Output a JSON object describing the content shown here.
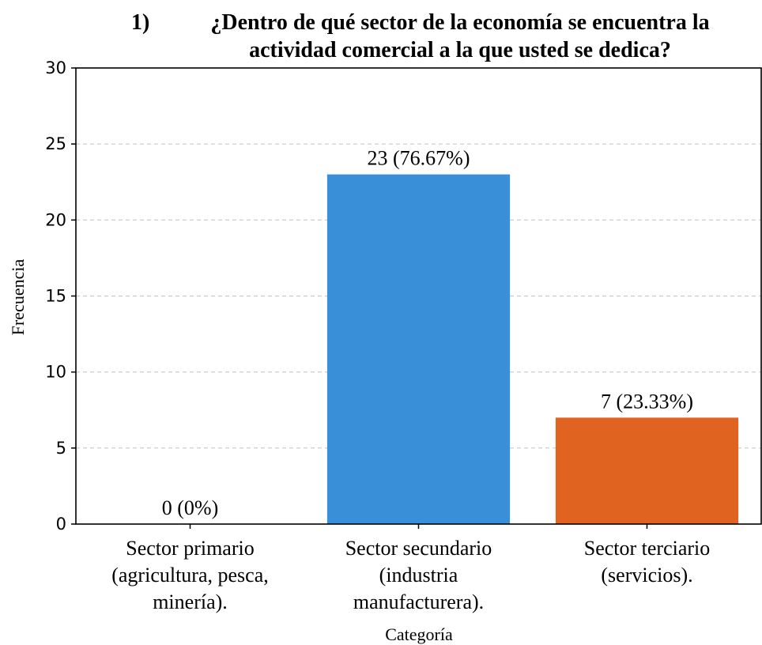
{
  "chart_data": {
    "type": "bar",
    "title_number": "1)",
    "title_lines": [
      "¿Dentro de qué sector de la economía se encuentra la",
      "actividad comercial a la que usted se dedica?"
    ],
    "categories": [
      [
        "Sector primario",
        "(agricultura, pesca,",
        "minería)."
      ],
      [
        "Sector secundario",
        "(industria",
        "manufacturera)."
      ],
      [
        "Sector terciario",
        "(servicios)."
      ]
    ],
    "values": [
      0,
      23,
      7
    ],
    "data_labels": [
      "0 (0%)",
      "23 (76.67%)",
      "7 (23.33%)"
    ],
    "colors": [
      "#3a8fd9",
      "#3a8fd9",
      "#e0631f"
    ],
    "xlabel": "Categoría",
    "ylabel": "Frecuencia",
    "ylim": [
      0,
      30
    ],
    "yticks": [
      0,
      5,
      10,
      15,
      20,
      25,
      30
    ],
    "grid": true
  }
}
